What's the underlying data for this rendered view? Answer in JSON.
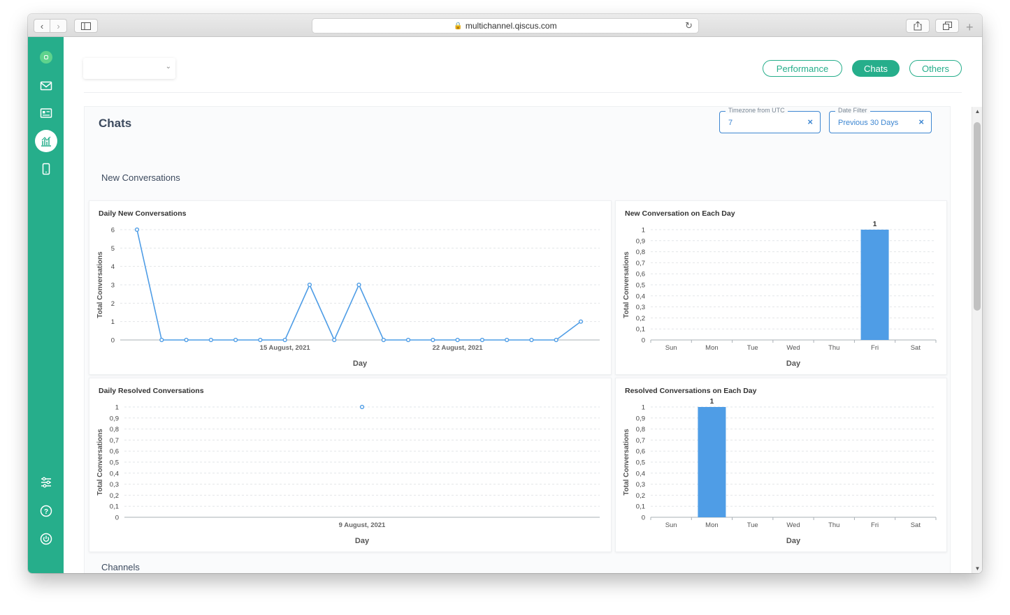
{
  "browser": {
    "url": "multichannel.qiscus.com"
  },
  "sidebar": {
    "icons": [
      "app-logo-icon",
      "inbox-icon",
      "contacts-icon",
      "analytics-icon",
      "mobile-icon",
      "settings-sliders-icon",
      "help-icon",
      "power-icon"
    ]
  },
  "header": {
    "tabs": [
      {
        "label": "Performance",
        "active": false
      },
      {
        "label": "Chats",
        "active": true
      },
      {
        "label": "Others",
        "active": false
      }
    ]
  },
  "page": {
    "title": "Chats",
    "filters": {
      "timezone_label": "Timezone from UTC",
      "timezone_value": "7",
      "date_label": "Date Filter",
      "date_value": "Previous 30 Days",
      "clear_glyph": "×"
    },
    "section_new": "New Conversations",
    "section_channels": "Channels"
  },
  "colors": {
    "accent": "#26ae8b",
    "series": "#4f9de6",
    "filter_border": "#3d86d1"
  },
  "chart_data": [
    {
      "type": "line",
      "title": "Daily New Conversations",
      "xlabel": "Day",
      "ylabel": "Total Conversations",
      "ylim": [
        0,
        6
      ],
      "yticks": [
        "0",
        "1",
        "2",
        "3",
        "4",
        "5",
        "6"
      ],
      "x_tick_labels": [
        {
          "index": 6,
          "label": "15 August, 2021"
        },
        {
          "index": 13,
          "label": "22 August, 2021"
        }
      ],
      "values": [
        6,
        0,
        0,
        0,
        0,
        0,
        0,
        3,
        0,
        3,
        0,
        0,
        0,
        0,
        0,
        0,
        0,
        0,
        1
      ]
    },
    {
      "type": "bar",
      "title": "New Conversation on Each Day",
      "xlabel": "Day",
      "ylabel": "Total Conversations",
      "ylim": [
        0,
        1
      ],
      "yticks": [
        "0",
        "0,1",
        "0,2",
        "0,3",
        "0,4",
        "0,5",
        "0,6",
        "0,7",
        "0,8",
        "0,9",
        "1"
      ],
      "categories": [
        "Sun",
        "Mon",
        "Tue",
        "Wed",
        "Thu",
        "Fri",
        "Sat"
      ],
      "values": [
        0,
        0,
        0,
        0,
        0,
        1,
        0
      ],
      "data_labels": [
        "",
        "",
        "",
        "",
        "",
        "1",
        ""
      ]
    },
    {
      "type": "scatter",
      "title": "Daily Resolved Conversations",
      "xlabel": "Day",
      "ylabel": "Total Conversations",
      "ylim": [
        0,
        1
      ],
      "yticks": [
        "0",
        "0,1",
        "0,2",
        "0,3",
        "0,4",
        "0,5",
        "0,6",
        "0,7",
        "0,8",
        "0,9",
        "1"
      ],
      "x_tick_labels": [
        {
          "index": 0,
          "label": "9 August, 2021"
        }
      ],
      "values": [
        1
      ]
    },
    {
      "type": "bar",
      "title": "Resolved Conversations on Each Day",
      "xlabel": "Day",
      "ylabel": "Total Conversations",
      "ylim": [
        0,
        1
      ],
      "yticks": [
        "0",
        "0,1",
        "0,2",
        "0,3",
        "0,4",
        "0,5",
        "0,6",
        "0,7",
        "0,8",
        "0,9",
        "1"
      ],
      "categories": [
        "Sun",
        "Mon",
        "Tue",
        "Wed",
        "Thu",
        "Fri",
        "Sat"
      ],
      "values": [
        0,
        1,
        0,
        0,
        0,
        0,
        0
      ],
      "data_labels": [
        "",
        "1",
        "",
        "",
        "",
        "",
        ""
      ]
    }
  ]
}
